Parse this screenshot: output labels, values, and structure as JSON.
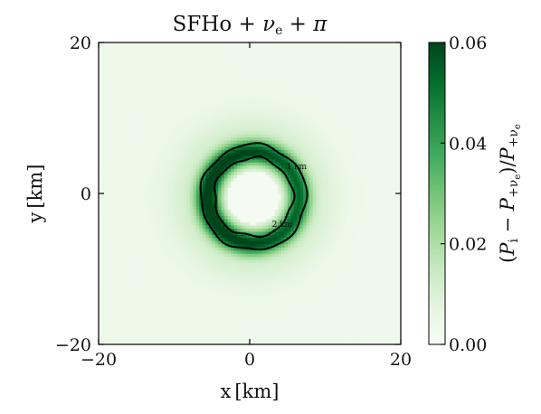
{
  "chart_data": {
    "type": "heatmap",
    "title": "SFHo + ν_e + π",
    "xlabel": "x [km]",
    "ylabel": "y [km]",
    "xlim": [
      -20,
      20
    ],
    "ylim": [
      -20,
      20
    ],
    "x_ticks": [
      -20,
      0,
      20
    ],
    "y_ticks": [
      -20,
      0,
      20
    ],
    "x_tick_labels": [
      "−20",
      "0",
      "20"
    ],
    "y_tick_labels": [
      "−20",
      "0",
      "20"
    ],
    "colorbar": {
      "label": "(P_i − P_{+ν_e}) / P_{+ν_e}",
      "range": [
        0,
        0.06
      ],
      "ticks": [
        0,
        0.02,
        0.04,
        0.06
      ],
      "tick_labels": [
        "0.00",
        "0.02",
        "0.04",
        "0.06"
      ],
      "colormap": "Greens",
      "color_low": "#f7fcf5",
      "color_high": "#00441b"
    },
    "field": {
      "description": "ring-shaped excess",
      "center_km": [
        0.5,
        -0.5
      ],
      "ring_radius_km": 6.0,
      "ring_width_km": 1.6,
      "peak_value": 0.058,
      "background_value": 0.004
    },
    "contours": [
      {
        "level_label": "1 km",
        "radius_km": 7.0
      },
      {
        "level_label": "2 km",
        "radius_km": 5.2
      }
    ],
    "grid": false
  }
}
